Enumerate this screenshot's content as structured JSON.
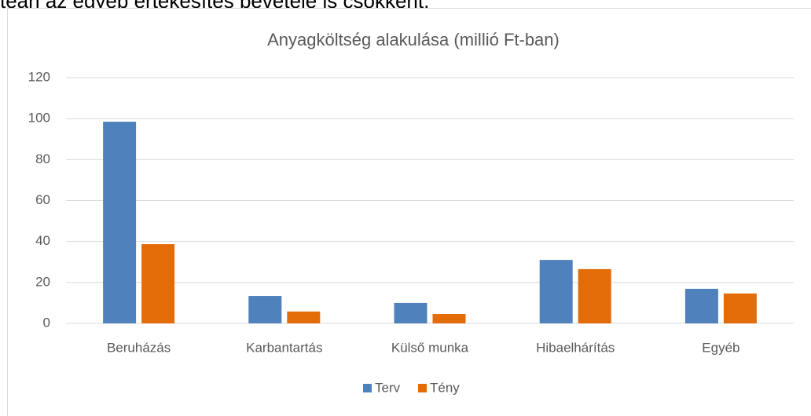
{
  "intro_text": "tean az egyéb értékesítés bevétele is csökkent.",
  "chart_data": {
    "type": "bar",
    "title": "Anyagköltség alakulása (millió Ft-ban)",
    "categories": [
      "Beruházás",
      "Karbantartás",
      "Külső munka",
      "Hibaelhárítás",
      "Egyéb"
    ],
    "series": [
      {
        "name": "Terv",
        "color": "#4f81bd",
        "values": [
          98.5,
          13.4,
          10,
          31,
          16.9
        ]
      },
      {
        "name": "Tény",
        "color": "#e36c09",
        "values": [
          38.7,
          5.8,
          4.6,
          26.5,
          14.6
        ]
      }
    ],
    "ylim": [
      0,
      120
    ],
    "yticks": [
      0,
      20,
      40,
      60,
      80,
      100,
      120
    ],
    "grid": true,
    "legend": "bottom"
  }
}
